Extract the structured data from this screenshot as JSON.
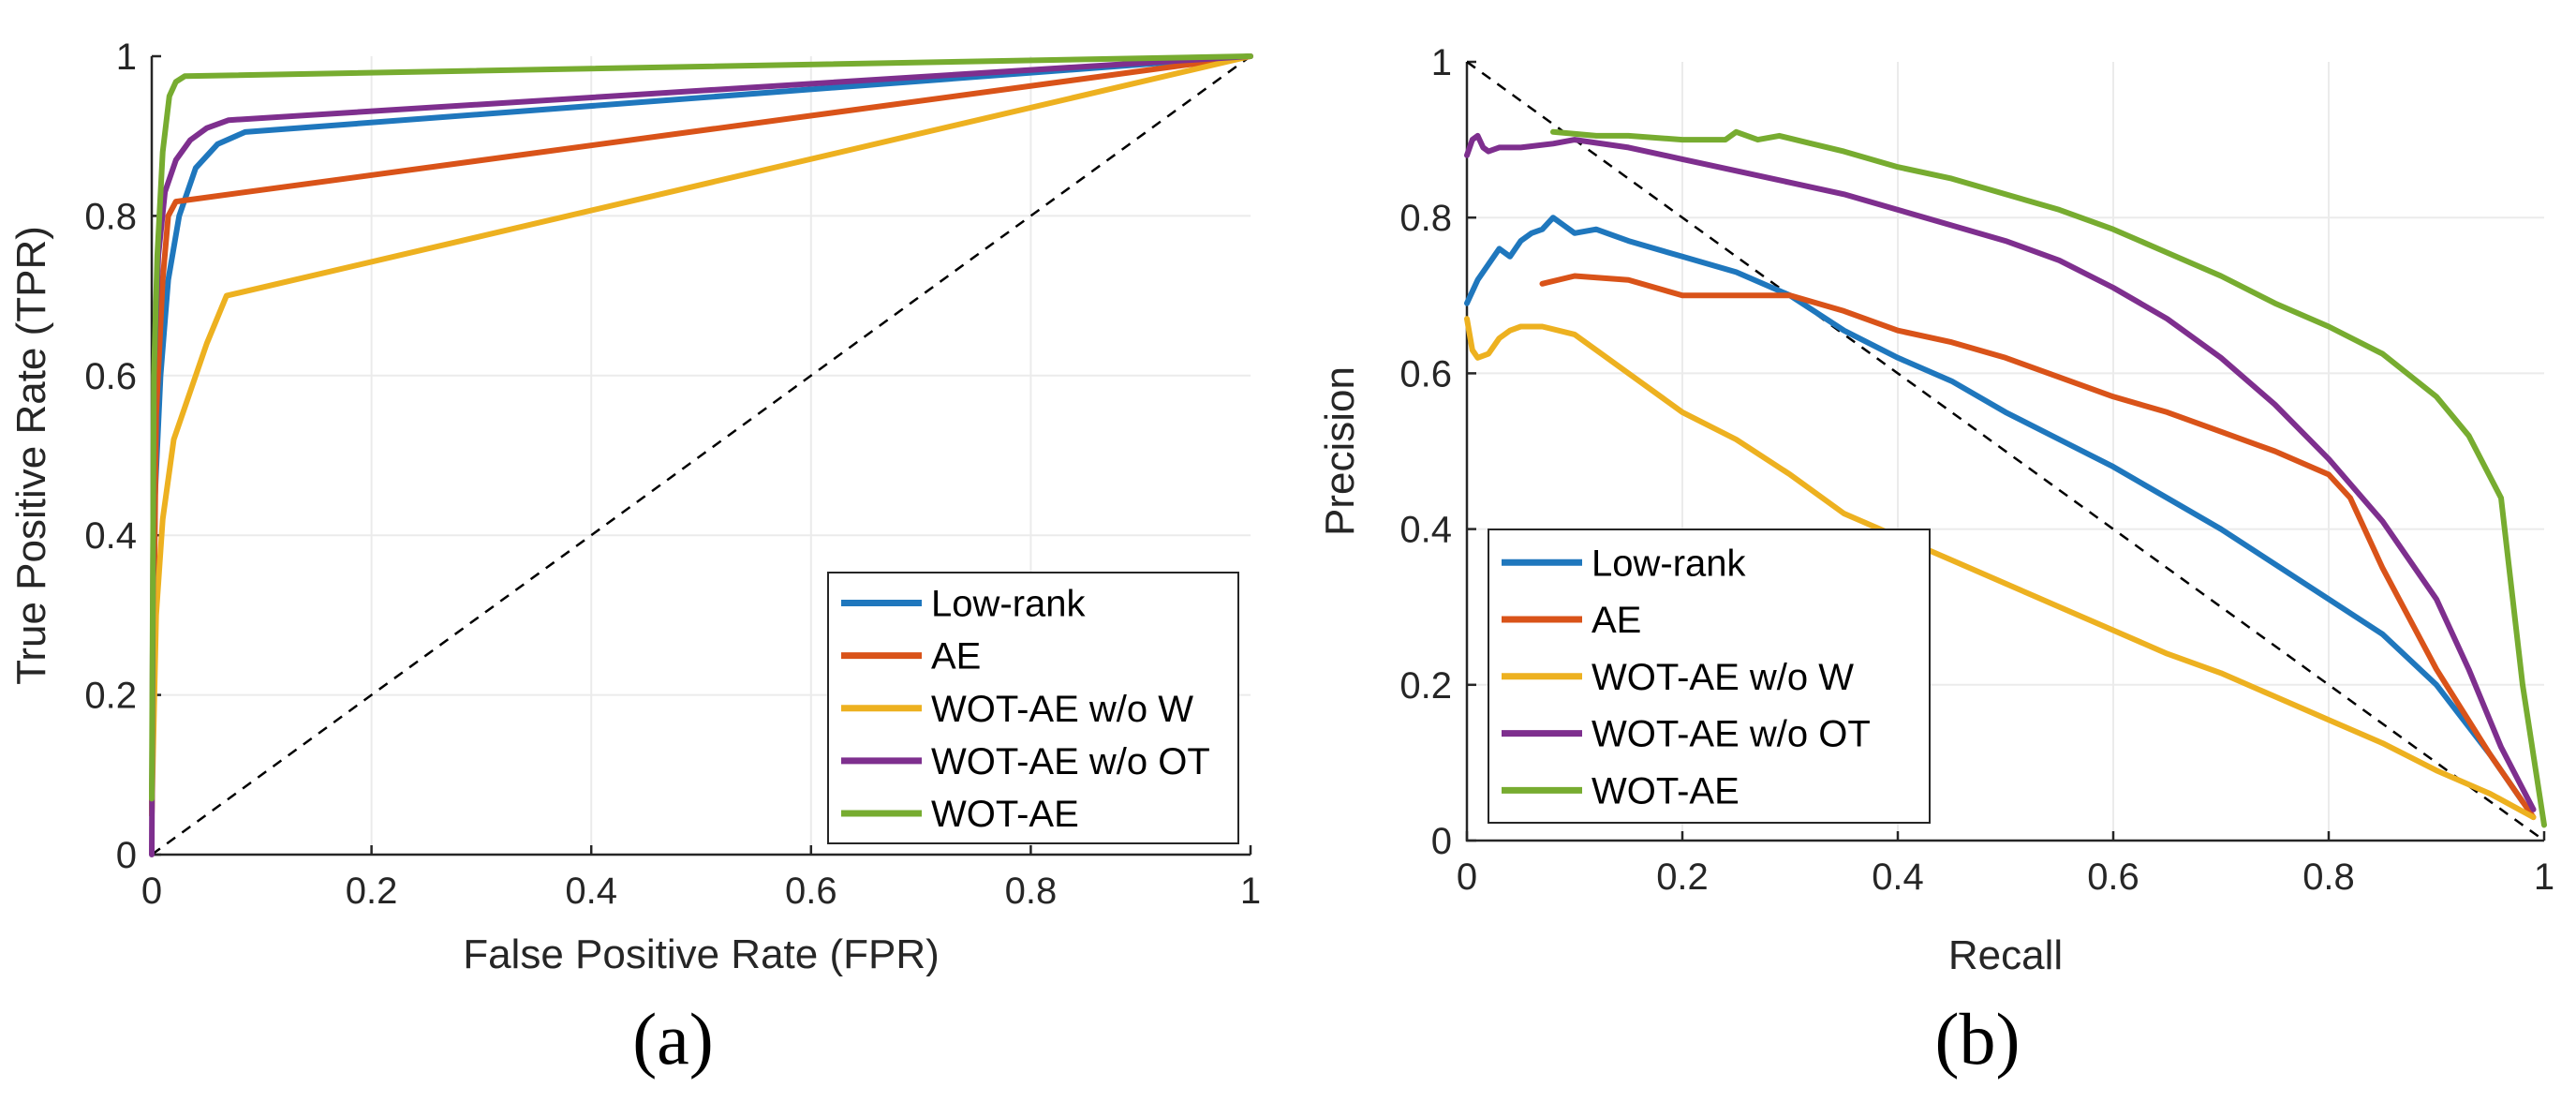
{
  "colors": {
    "Low-rank": "#1f77bd",
    "AE": "#d95319",
    "WOT-AE w/o W": "#edb120",
    "WOT-AE w/o OT": "#7e2f8e",
    "WOT-AE": "#77ac30"
  },
  "chart_data": [
    {
      "type": "line",
      "id": "roc",
      "caption": "(a)",
      "xlabel": "False Positive Rate (FPR)",
      "ylabel": "True Positive Rate (TPR)",
      "xlim": [
        0,
        1
      ],
      "ylim": [
        0,
        1
      ],
      "xticks": [
        0,
        0.2,
        0.4,
        0.6,
        0.8,
        1
      ],
      "yticks": [
        0,
        0.2,
        0.4,
        0.6,
        0.8,
        1
      ],
      "xtick_labels": [
        "0",
        "0.2",
        "0.4",
        "0.6",
        "0.8",
        "1"
      ],
      "ytick_labels": [
        "0",
        "0.2",
        "0.4",
        "0.6",
        "0.8",
        "1"
      ],
      "grid": true,
      "legend_position": "bottom-right",
      "reference_line": {
        "style": "dashed",
        "points": [
          [
            0,
            0
          ],
          [
            1,
            1
          ]
        ]
      },
      "series": [
        {
          "name": "Low-rank",
          "points": [
            [
              0,
              0.05
            ],
            [
              0.003,
              0.45
            ],
            [
              0.008,
              0.6
            ],
            [
              0.015,
              0.72
            ],
            [
              0.025,
              0.8
            ],
            [
              0.04,
              0.86
            ],
            [
              0.06,
              0.89
            ],
            [
              0.085,
              0.905
            ],
            [
              1,
              1
            ]
          ]
        },
        {
          "name": "AE",
          "points": [
            [
              0,
              0.05
            ],
            [
              0.004,
              0.55
            ],
            [
              0.01,
              0.72
            ],
            [
              0.015,
              0.8
            ],
            [
              0.022,
              0.818
            ],
            [
              1,
              1
            ]
          ]
        },
        {
          "name": "WOT-AE w/o W",
          "points": [
            [
              0,
              0.05
            ],
            [
              0.004,
              0.3
            ],
            [
              0.01,
              0.42
            ],
            [
              0.02,
              0.52
            ],
            [
              0.035,
              0.58
            ],
            [
              0.05,
              0.64
            ],
            [
              0.068,
              0.7
            ],
            [
              1,
              1
            ]
          ]
        },
        {
          "name": "WOT-AE w/o OT",
          "points": [
            [
              0,
              0
            ],
            [
              0.002,
              0.6
            ],
            [
              0.006,
              0.75
            ],
            [
              0.012,
              0.83
            ],
            [
              0.022,
              0.87
            ],
            [
              0.035,
              0.895
            ],
            [
              0.05,
              0.91
            ],
            [
              0.07,
              0.92
            ],
            [
              1,
              1
            ]
          ]
        },
        {
          "name": "WOT-AE",
          "points": [
            [
              0,
              0.07
            ],
            [
              0.002,
              0.6
            ],
            [
              0.005,
              0.75
            ],
            [
              0.01,
              0.88
            ],
            [
              0.016,
              0.95
            ],
            [
              0.022,
              0.968
            ],
            [
              0.03,
              0.975
            ],
            [
              1,
              1
            ]
          ]
        }
      ]
    },
    {
      "type": "line",
      "id": "pr",
      "caption": "(b)",
      "xlabel": "Recall",
      "ylabel": "Precision",
      "xlim": [
        0,
        1
      ],
      "ylim": [
        0,
        1
      ],
      "xticks": [
        0,
        0.2,
        0.4,
        0.6,
        0.8,
        1
      ],
      "yticks": [
        0,
        0.2,
        0.4,
        0.6,
        0.8,
        1
      ],
      "xtick_labels": [
        "0",
        "0.2",
        "0.4",
        "0.6",
        "0.8",
        "1"
      ],
      "ytick_labels": [
        "0",
        "0.2",
        "0.4",
        "0.6",
        "0.8",
        "1"
      ],
      "grid": true,
      "legend_position": "bottom-left",
      "reference_line": {
        "style": "dashed",
        "points": [
          [
            0,
            1
          ],
          [
            1,
            0
          ]
        ]
      },
      "series": [
        {
          "name": "Low-rank",
          "points": [
            [
              0,
              0.69
            ],
            [
              0.01,
              0.72
            ],
            [
              0.02,
              0.74
            ],
            [
              0.03,
              0.76
            ],
            [
              0.04,
              0.75
            ],
            [
              0.05,
              0.77
            ],
            [
              0.06,
              0.78
            ],
            [
              0.07,
              0.785
            ],
            [
              0.08,
              0.8
            ],
            [
              0.09,
              0.79
            ],
            [
              0.1,
              0.78
            ],
            [
              0.12,
              0.785
            ],
            [
              0.15,
              0.77
            ],
            [
              0.2,
              0.75
            ],
            [
              0.25,
              0.73
            ],
            [
              0.3,
              0.7
            ],
            [
              0.35,
              0.655
            ],
            [
              0.4,
              0.62
            ],
            [
              0.45,
              0.59
            ],
            [
              0.5,
              0.55
            ],
            [
              0.55,
              0.515
            ],
            [
              0.6,
              0.48
            ],
            [
              0.65,
              0.44
            ],
            [
              0.7,
              0.4
            ],
            [
              0.75,
              0.355
            ],
            [
              0.8,
              0.31
            ],
            [
              0.85,
              0.265
            ],
            [
              0.9,
              0.2
            ],
            [
              0.95,
              0.11
            ],
            [
              0.98,
              0.05
            ]
          ]
        },
        {
          "name": "AE",
          "points": [
            [
              0.07,
              0.715
            ],
            [
              0.1,
              0.725
            ],
            [
              0.15,
              0.72
            ],
            [
              0.2,
              0.7
            ],
            [
              0.25,
              0.7
            ],
            [
              0.3,
              0.7
            ],
            [
              0.35,
              0.68
            ],
            [
              0.4,
              0.655
            ],
            [
              0.45,
              0.64
            ],
            [
              0.5,
              0.62
            ],
            [
              0.55,
              0.595
            ],
            [
              0.6,
              0.57
            ],
            [
              0.65,
              0.55
            ],
            [
              0.7,
              0.525
            ],
            [
              0.75,
              0.5
            ],
            [
              0.8,
              0.47
            ],
            [
              0.82,
              0.44
            ],
            [
              0.85,
              0.35
            ],
            [
              0.9,
              0.22
            ],
            [
              0.95,
              0.11
            ],
            [
              0.99,
              0.03
            ]
          ]
        },
        {
          "name": "WOT-AE w/o W",
          "points": [
            [
              0,
              0.67
            ],
            [
              0.005,
              0.63
            ],
            [
              0.01,
              0.62
            ],
            [
              0.02,
              0.625
            ],
            [
              0.03,
              0.645
            ],
            [
              0.04,
              0.655
            ],
            [
              0.05,
              0.66
            ],
            [
              0.07,
              0.66
            ],
            [
              0.1,
              0.65
            ],
            [
              0.15,
              0.6
            ],
            [
              0.2,
              0.55
            ],
            [
              0.25,
              0.515
            ],
            [
              0.3,
              0.47
            ],
            [
              0.35,
              0.42
            ],
            [
              0.4,
              0.39
            ],
            [
              0.45,
              0.36
            ],
            [
              0.5,
              0.33
            ],
            [
              0.55,
              0.3
            ],
            [
              0.6,
              0.27
            ],
            [
              0.65,
              0.24
            ],
            [
              0.7,
              0.215
            ],
            [
              0.75,
              0.185
            ],
            [
              0.8,
              0.155
            ],
            [
              0.85,
              0.125
            ],
            [
              0.9,
              0.09
            ],
            [
              0.95,
              0.06
            ],
            [
              0.99,
              0.03
            ]
          ]
        },
        {
          "name": "WOT-AE w/o OT",
          "points": [
            [
              0,
              0.88
            ],
            [
              0.005,
              0.9
            ],
            [
              0.01,
              0.905
            ],
            [
              0.015,
              0.89
            ],
            [
              0.02,
              0.885
            ],
            [
              0.03,
              0.89
            ],
            [
              0.05,
              0.89
            ],
            [
              0.08,
              0.895
            ],
            [
              0.1,
              0.9
            ],
            [
              0.15,
              0.89
            ],
            [
              0.2,
              0.875
            ],
            [
              0.25,
              0.86
            ],
            [
              0.3,
              0.845
            ],
            [
              0.35,
              0.83
            ],
            [
              0.4,
              0.81
            ],
            [
              0.45,
              0.79
            ],
            [
              0.5,
              0.77
            ],
            [
              0.55,
              0.745
            ],
            [
              0.6,
              0.71
            ],
            [
              0.65,
              0.67
            ],
            [
              0.7,
              0.62
            ],
            [
              0.75,
              0.56
            ],
            [
              0.8,
              0.49
            ],
            [
              0.85,
              0.41
            ],
            [
              0.9,
              0.31
            ],
            [
              0.93,
              0.22
            ],
            [
              0.96,
              0.12
            ],
            [
              0.99,
              0.04
            ]
          ]
        },
        {
          "name": "WOT-AE",
          "points": [
            [
              0.08,
              0.91
            ],
            [
              0.12,
              0.905
            ],
            [
              0.15,
              0.905
            ],
            [
              0.2,
              0.9
            ],
            [
              0.24,
              0.9
            ],
            [
              0.25,
              0.91
            ],
            [
              0.27,
              0.9
            ],
            [
              0.29,
              0.905
            ],
            [
              0.32,
              0.895
            ],
            [
              0.35,
              0.885
            ],
            [
              0.4,
              0.865
            ],
            [
              0.45,
              0.85
            ],
            [
              0.5,
              0.83
            ],
            [
              0.55,
              0.81
            ],
            [
              0.6,
              0.785
            ],
            [
              0.65,
              0.755
            ],
            [
              0.7,
              0.725
            ],
            [
              0.75,
              0.69
            ],
            [
              0.8,
              0.66
            ],
            [
              0.85,
              0.625
            ],
            [
              0.9,
              0.57
            ],
            [
              0.93,
              0.52
            ],
            [
              0.96,
              0.44
            ],
            [
              0.98,
              0.2
            ],
            [
              1.0,
              0.02
            ]
          ]
        }
      ]
    }
  ]
}
